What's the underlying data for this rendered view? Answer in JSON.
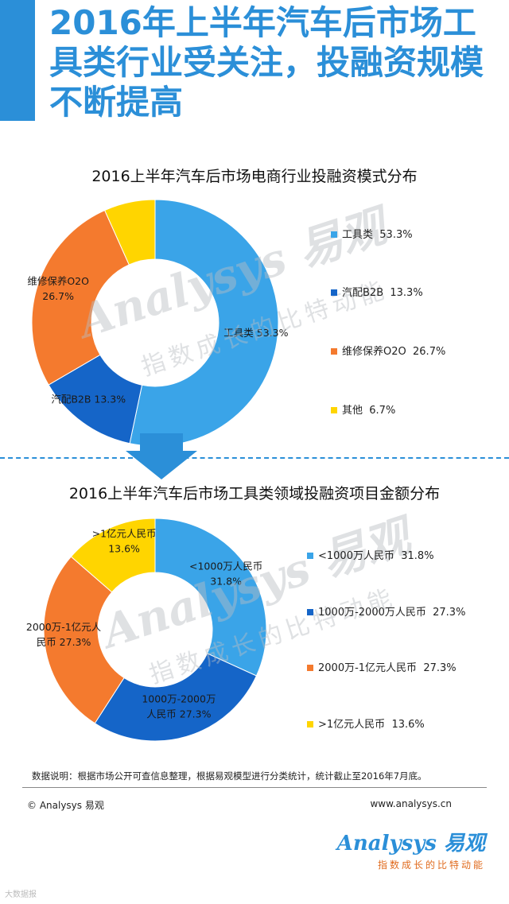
{
  "headline": "2016年上半年汽车后市场工具类行业受关注，投融资规模不断提高",
  "watermark": {
    "logo": "Analysys 易观",
    "tagline": "指数成长的比特动能"
  },
  "chart_data": [
    {
      "type": "pie",
      "title": "2016上半年汽车后市场电商行业投融资模式分布",
      "categories": [
        "工具类",
        "汽配B2B",
        "维修保养O2O",
        "其他"
      ],
      "values": [
        53.3,
        13.3,
        26.7,
        6.7
      ],
      "value_labels": [
        "53.3%",
        "13.3%",
        "26.7%",
        "6.7%"
      ],
      "colors": [
        "#3aa4e8",
        "#1565c8",
        "#f47a2e",
        "#ffd500"
      ],
      "legend_position": "right"
    },
    {
      "type": "pie",
      "title": "2016上半年汽车后市场工具类领域投融资项目金额分布",
      "categories": [
        "<1000万人民币",
        "1000万-2000万人民币",
        "2000万-1亿元人民币",
        ">1亿元人民币"
      ],
      "values": [
        31.8,
        27.3,
        27.3,
        13.6
      ],
      "value_labels": [
        "31.8%",
        "27.3%",
        "27.3%",
        "13.6%"
      ],
      "colors": [
        "#3aa4e8",
        "#1565c8",
        "#f47a2e",
        "#ffd500"
      ],
      "legend_position": "right"
    }
  ],
  "chart1_slice_labels": [
    {
      "line1": "工具类  53.3%",
      "line2": ""
    },
    {
      "line1": "汽配B2B  13.3%",
      "line2": ""
    },
    {
      "line1": "维修保养O2O",
      "line2": "26.7%"
    },
    {
      "line1": "",
      "line2": ""
    }
  ],
  "chart2_slice_labels": [
    {
      "line1": "<1000万人民币",
      "line2": "31.8%"
    },
    {
      "line1": "1000万-2000万",
      "line2": "人民币  27.3%"
    },
    {
      "line1": "2000万-1亿元人",
      "line2": "民币  27.3%"
    },
    {
      "line1": ">1亿元人民币",
      "line2": "13.6%"
    }
  ],
  "note": "数据说明：根据市场公开可查信息整理，根据易观模型进行分类统计，统计截止至2016年7月底。",
  "footer": {
    "copyright": "© Analysys 易观",
    "website": "www.analysys.cn"
  },
  "brand": {
    "logo": "Analysys 易观",
    "tagline": "指数成长的比特动能"
  },
  "credit": "大数据报"
}
